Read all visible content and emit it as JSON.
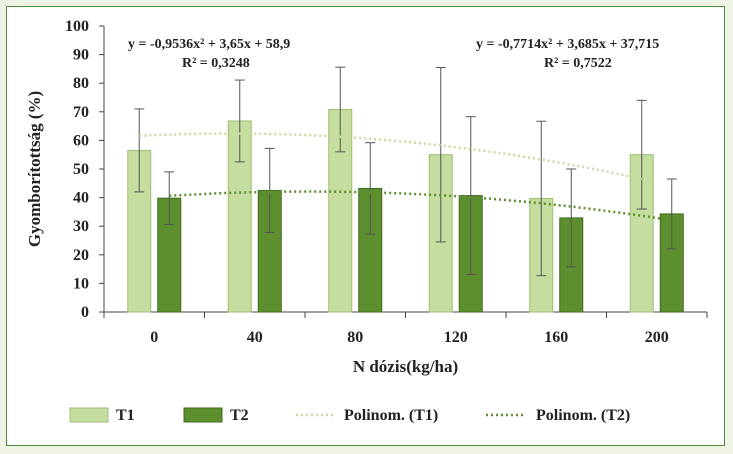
{
  "chart_data": {
    "type": "bar",
    "xlabel": "N dózis(kg/ha)",
    "ylabel": "Gyomborítottság (%)",
    "ylim": [
      0,
      100
    ],
    "yticks": [
      0,
      10,
      20,
      30,
      40,
      50,
      60,
      70,
      80,
      90,
      100
    ],
    "categories": [
      "0",
      "40",
      "80",
      "120",
      "160",
      "200"
    ],
    "series": [
      {
        "name": "T1",
        "color": "#c5dd9f",
        "values": [
          56.5,
          66.8,
          70.8,
          55.0,
          39.7,
          55.0
        ],
        "error": [
          14.5,
          14.3,
          14.8,
          30.5,
          27.0,
          19.0
        ]
      },
      {
        "name": "T2",
        "color": "#5e8f2f",
        "values": [
          39.8,
          42.5,
          43.2,
          40.7,
          32.9,
          34.3
        ],
        "error": [
          9.2,
          14.7,
          16.0,
          27.6,
          17.1,
          12.2
        ]
      }
    ],
    "trendlines": [
      {
        "name": "Polinom. (T1)",
        "color": "#c5dd9f",
        "equation": "y = -0,9536x² + 3,65x + 58,9",
        "r2": "R² = 0,3248",
        "coefficients": [
          -0.9536,
          3.65,
          58.9
        ]
      },
      {
        "name": "Polinom. (T2)",
        "color": "#5e8f2f",
        "equation": "y = -0,7714x² + 3,685x + 37,715",
        "r2": "R² = 0,7522",
        "coefficients": [
          -0.7714,
          3.685,
          37.715
        ]
      }
    ],
    "legend": [
      "T1",
      "T2",
      "Polinom. (T1)",
      "Polinom. (T2)"
    ],
    "legend_position": "bottom",
    "grid": false
  }
}
